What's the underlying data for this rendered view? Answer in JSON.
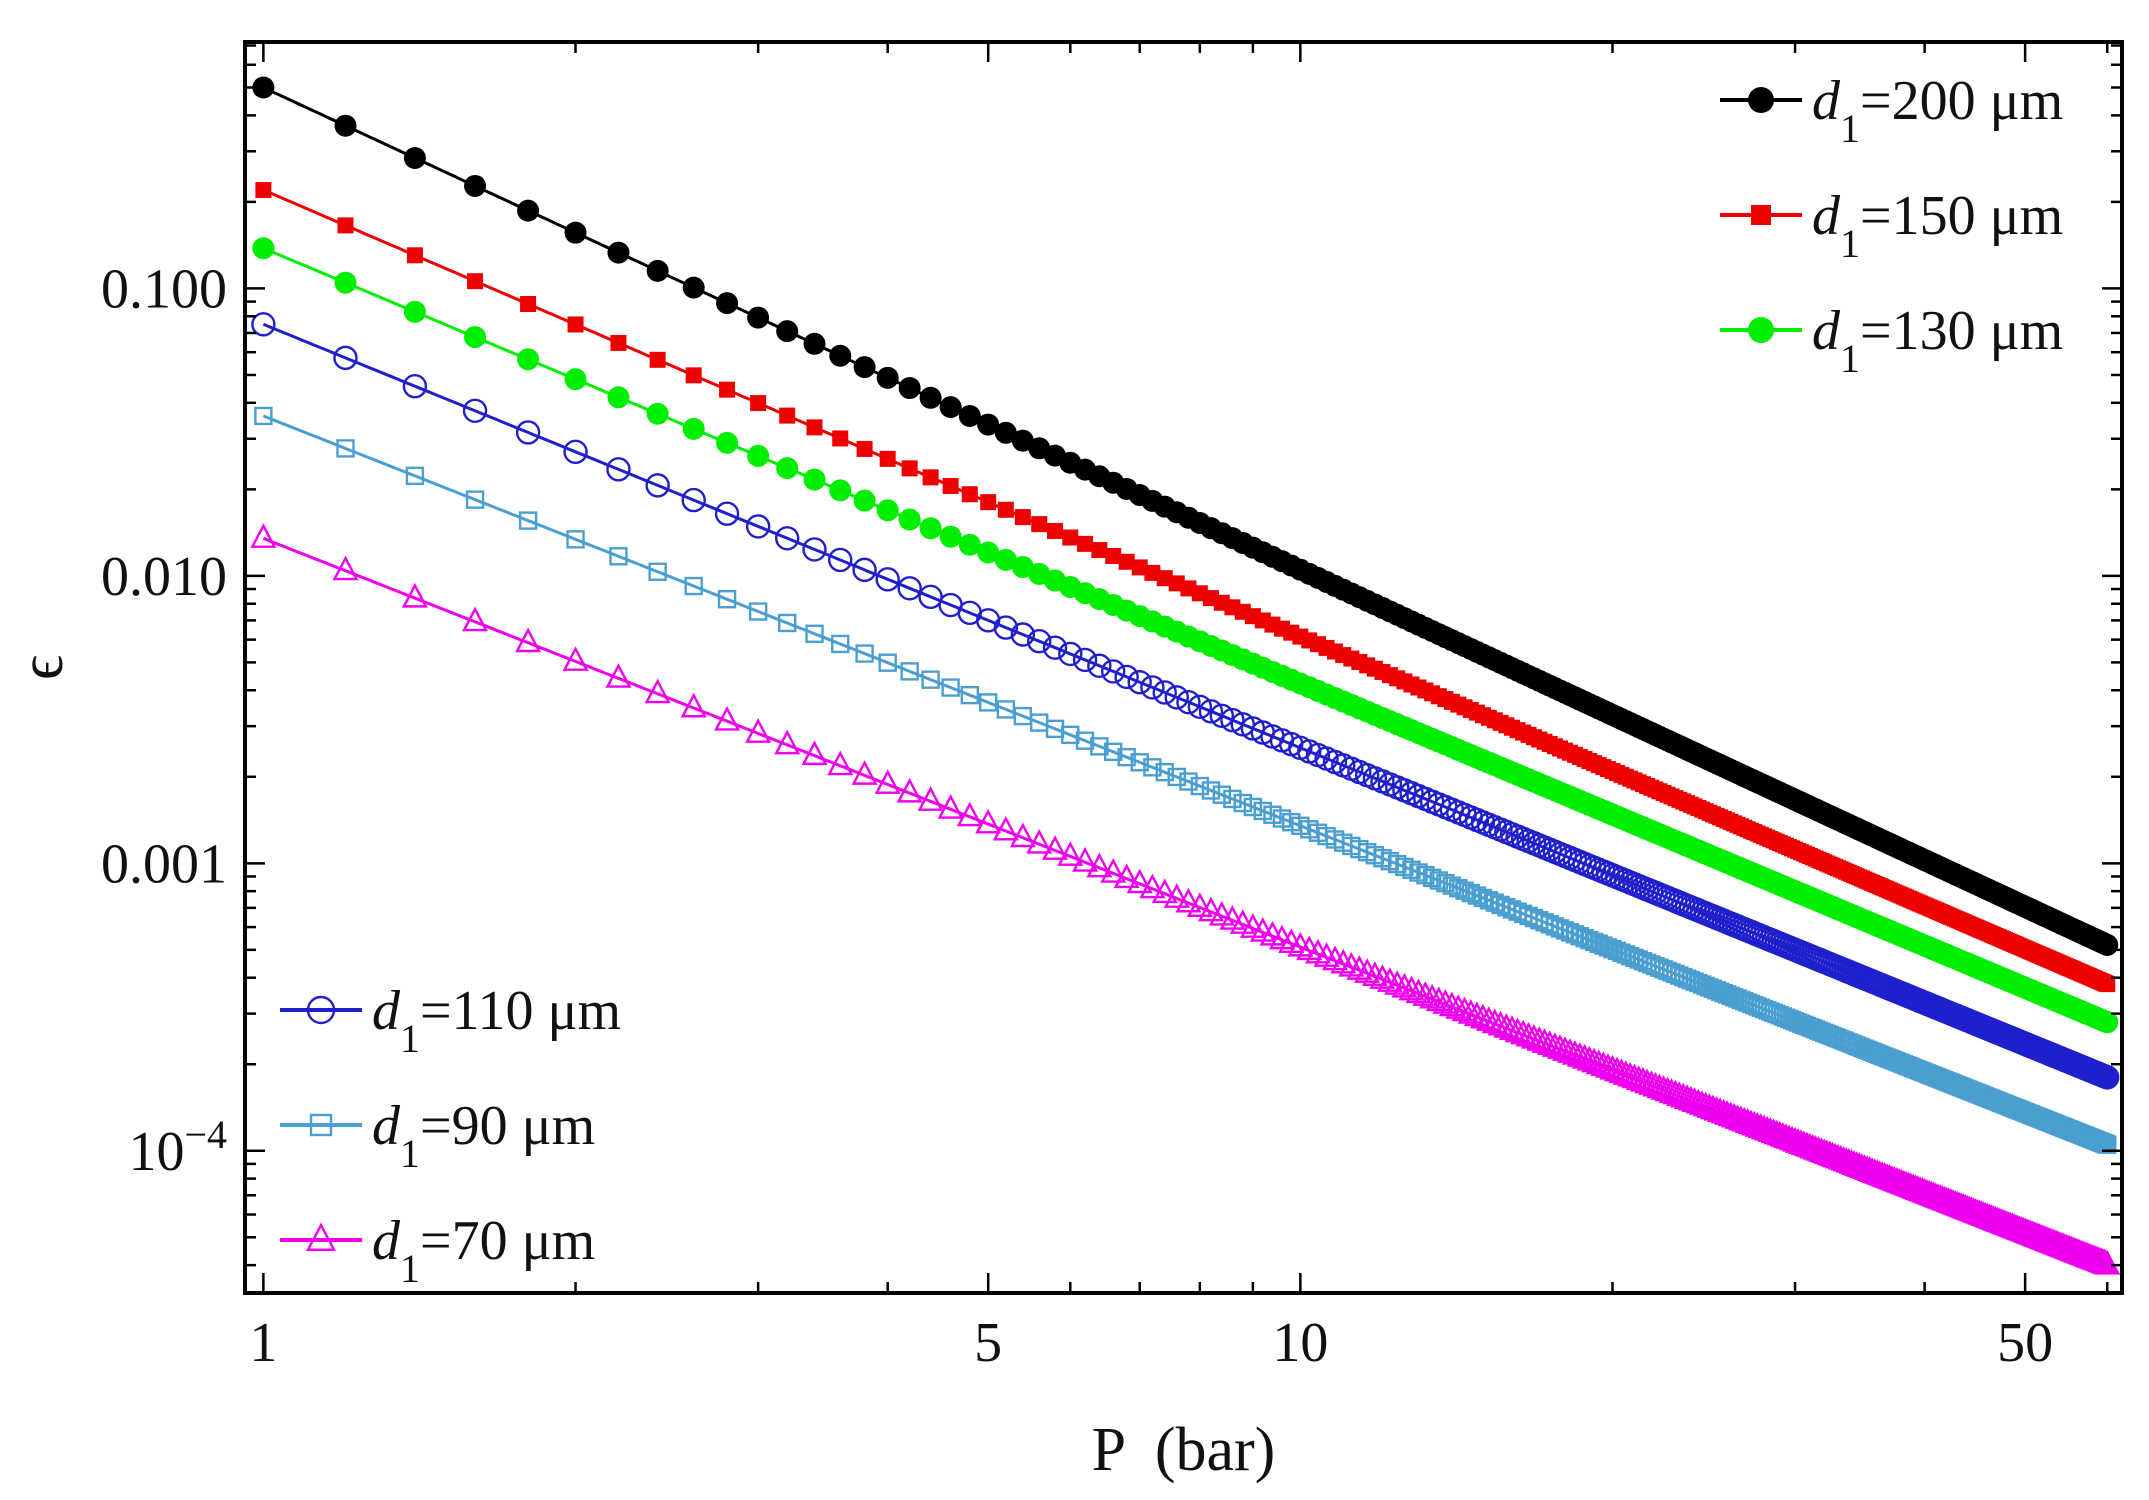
{
  "chart_data": {
    "type": "line",
    "xscale": "log",
    "yscale": "log",
    "xlabel": "P  (bar)",
    "ylabel": "ϵ",
    "xlim": [
      0.96,
      62
    ],
    "ylim": [
      3.2e-05,
      0.72
    ],
    "x_ticks": [
      {
        "value": 1,
        "label": "1"
      },
      {
        "value": 5,
        "label": "5"
      },
      {
        "value": 10,
        "label": "10"
      },
      {
        "value": 50,
        "label": "50"
      }
    ],
    "y_ticks": [
      {
        "value": 0.1,
        "label": "0.100"
      },
      {
        "value": 0.01,
        "label": "0.010"
      },
      {
        "value": 0.001,
        "label": "0.001"
      },
      {
        "value": 0.0001,
        "label": "10",
        "sup": "−4"
      }
    ],
    "x_range": [
      1,
      60
    ],
    "series": [
      {
        "name": "d1=200 μm",
        "legend": {
          "var": "d",
          "sub": "1",
          "rest": "=200 μm"
        },
        "color": "#000000",
        "marker": "filled-circle",
        "values_at_x": {
          "1": 0.5,
          "60": 0.00052
        }
      },
      {
        "name": "d1=150 μm",
        "legend": {
          "var": "d",
          "sub": "1",
          "rest": "=150 μm"
        },
        "color": "#ee0000",
        "marker": "filled-square",
        "values_at_x": {
          "1": 0.22,
          "60": 0.00038
        }
      },
      {
        "name": "d1=130 μm",
        "legend": {
          "var": "d",
          "sub": "1",
          "rest": "=130 μm"
        },
        "color": "#00ee00",
        "marker": "filled-circle",
        "values_at_x": {
          "1": 0.138,
          "60": 0.00028
        }
      },
      {
        "name": "d1=110 μm",
        "legend": {
          "var": "d",
          "sub": "1",
          "rest": "=110 μm"
        },
        "color": "#1f1fcc",
        "marker": "open-circle",
        "values_at_x": {
          "1": 0.075,
          "60": 0.00018
        }
      },
      {
        "name": "d1=90 μm",
        "legend": {
          "var": "d",
          "sub": "1",
          "rest": "=90 μm"
        },
        "color": "#4a9fd0",
        "marker": "open-square",
        "values_at_x": {
          "1": 0.036,
          "60": 0.000105
        }
      },
      {
        "name": "d1=70 μm",
        "legend": {
          "var": "d",
          "sub": "1",
          "rest": "=70 μm"
        },
        "color": "#ee00ee",
        "marker": "open-triangle",
        "values_at_x": {
          "1": 0.0135,
          "60": 4e-05
        }
      }
    ],
    "legends": [
      {
        "position": "top-right",
        "series": [
          0,
          1,
          2
        ]
      },
      {
        "position": "bottom-left",
        "series": [
          3,
          4,
          5
        ]
      }
    ],
    "grid": false
  }
}
